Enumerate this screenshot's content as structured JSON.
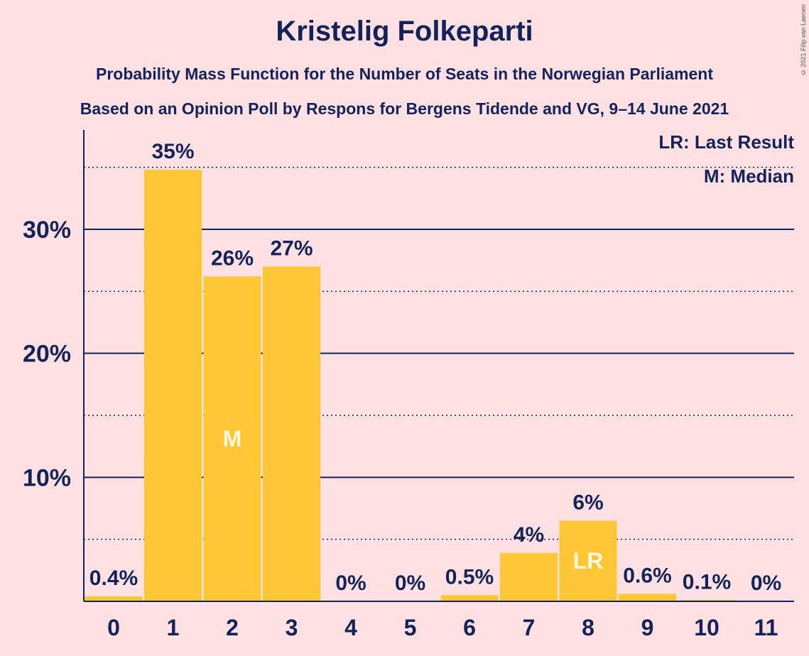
{
  "copyright": "© 2021 Filip van Laenen",
  "chart_data": {
    "type": "bar",
    "title": "Kristelig Folkeparti",
    "subtitle": "Probability Mass Function for the Number of Seats in the Norwegian Parliament",
    "subtitle2": "Based on an Opinion Poll by Respons for Bergens Tidende and VG, 9–14 June 2021",
    "categories": [
      "0",
      "1",
      "2",
      "3",
      "4",
      "5",
      "6",
      "7",
      "8",
      "9",
      "10",
      "11"
    ],
    "values": [
      0.4,
      34.8,
      26.2,
      27.0,
      0,
      0,
      0.5,
      3.9,
      6.5,
      0.6,
      0.1,
      0
    ],
    "value_labels": [
      "0.4%",
      "35%",
      "26%",
      "27%",
      "0%",
      "0%",
      "0.5%",
      "4%",
      "6%",
      "0.6%",
      "0.1%",
      "0%"
    ],
    "ylim": [
      0,
      38
    ],
    "yticks": [
      10,
      20,
      30
    ],
    "ytick_labels": [
      "10%",
      "20%",
      "30%"
    ],
    "minor_gridlines": [
      5,
      15,
      25,
      35
    ],
    "grid": true,
    "bar_color": "#FFC734",
    "text_color": "#13235A",
    "background": "#FFE1E3",
    "median_seat": "2",
    "median_label": "M",
    "last_result_seat": "8",
    "last_result_label": "LR",
    "legend": [
      "LR: Last Result",
      "M: Median"
    ],
    "legend_position": "top-right"
  }
}
